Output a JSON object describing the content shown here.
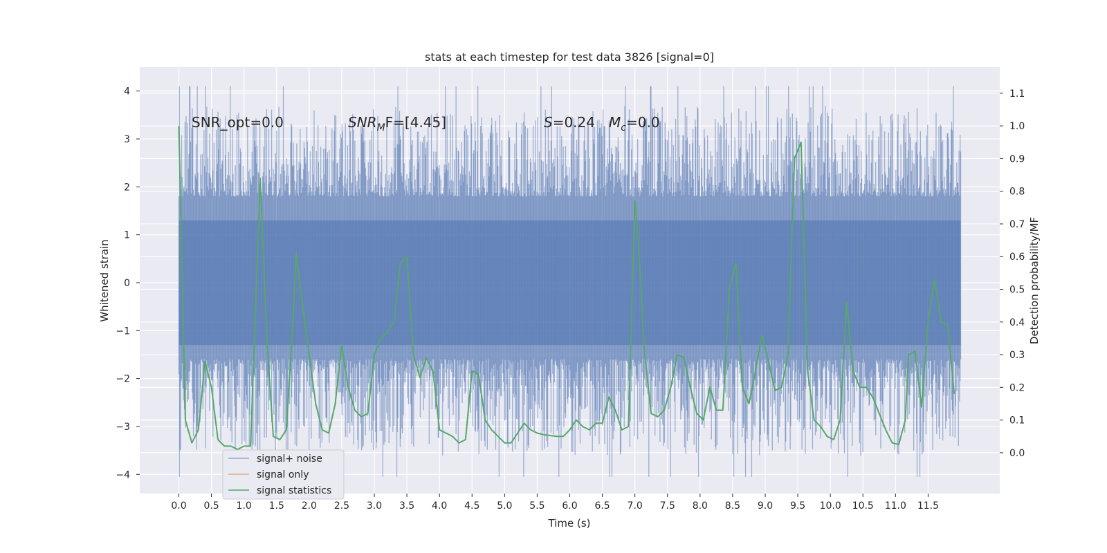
{
  "chart_data": {
    "type": "line",
    "title": "stats at each timestep for test data 3826 [signal=0]",
    "xlabel": "Time (s)",
    "ylabel_left": "Whitened strain",
    "ylabel_right": "Detection probability/MF",
    "xlim": [
      -0.6,
      12.6
    ],
    "ylim_left": [
      -4.4,
      4.5
    ],
    "ylim_right": [
      -0.125,
      1.18
    ],
    "x_ticks": [
      0.0,
      0.5,
      1.0,
      1.5,
      2.0,
      2.5,
      3.0,
      3.5,
      4.0,
      4.5,
      5.0,
      5.5,
      6.0,
      6.5,
      7.0,
      7.5,
      8.0,
      8.5,
      9.0,
      9.5,
      10.0,
      10.5,
      11.0,
      11.5
    ],
    "x_tick_labels": [
      "0.0",
      "0.5",
      "1.0",
      "1.5",
      "2.0",
      "2.5",
      "3.0",
      "3.5",
      "4.0",
      "4.5",
      "5.0",
      "5.5",
      "6.0",
      "6.5",
      "7.0",
      "7.5",
      "8.0",
      "8.5",
      "9.0",
      "9.5",
      "10.0",
      "10.5",
      "11.0",
      "11.5"
    ],
    "y_left_ticks": [
      4,
      3,
      2,
      1,
      0,
      -1,
      -2,
      -3,
      -4
    ],
    "y_left_tick_labels": [
      "4",
      "3",
      "2",
      "1",
      "0",
      "−1",
      "−2",
      "−3",
      "−4"
    ],
    "y_right_ticks": [
      1.1,
      1.0,
      0.9,
      0.8,
      0.7,
      0.6,
      0.5,
      0.4,
      0.3,
      0.2,
      0.1,
      0.0
    ],
    "y_right_tick_labels": [
      "1.1",
      "1.0",
      "0.9",
      "0.8",
      "0.7",
      "0.6",
      "0.5",
      "0.4",
      "0.3",
      "0.2",
      "0.1",
      "0.0"
    ],
    "grid": true,
    "legend_position": "lower-left",
    "annotations": {
      "snr_opt": "SNR_opt=0.0",
      "snr_mf_main": "SNR",
      "snr_mf_sub": "M",
      "snr_mf_rest": "F=[4.45]",
      "s_main": "S",
      "s_rest": "=0.24",
      "mc_main": "M",
      "mc_sub": "c",
      "mc_rest": "=0.0"
    },
    "noise_band": {
      "x_start": 0.0,
      "x_end": 12.0,
      "dense_min": -1.3,
      "dense_max": 1.3,
      "peak_max": 4.1,
      "peak_min": -4.05
    },
    "series": [
      {
        "name": "signal+ noise",
        "color": "#4c72b0",
        "axis": "left",
        "representation": "noise band"
      },
      {
        "name": "signal only",
        "color": "#dd8452",
        "axis": "left",
        "values": []
      },
      {
        "name": "signal statistics",
        "color": "#55a868",
        "axis": "right",
        "x": [
          0.0,
          0.1,
          0.2,
          0.3,
          0.4,
          0.5,
          0.6,
          0.7,
          0.8,
          0.9,
          1.0,
          1.1,
          1.25,
          1.35,
          1.45,
          1.55,
          1.65,
          1.75,
          1.8,
          1.9,
          2.0,
          2.1,
          2.2,
          2.3,
          2.4,
          2.5,
          2.6,
          2.7,
          2.8,
          2.9,
          3.0,
          3.1,
          3.2,
          3.3,
          3.4,
          3.5,
          3.6,
          3.7,
          3.8,
          3.9,
          4.0,
          4.1,
          4.2,
          4.3,
          4.4,
          4.5,
          4.6,
          4.7,
          4.8,
          4.9,
          5.0,
          5.1,
          5.2,
          5.3,
          5.4,
          5.5,
          5.6,
          5.8,
          5.9,
          6.0,
          6.1,
          6.2,
          6.3,
          6.4,
          6.5,
          6.6,
          6.7,
          6.8,
          6.9,
          7.0,
          7.05,
          7.15,
          7.25,
          7.35,
          7.45,
          7.55,
          7.65,
          7.75,
          7.85,
          7.95,
          8.05,
          8.15,
          8.25,
          8.35,
          8.45,
          8.55,
          8.65,
          8.75,
          8.85,
          8.95,
          9.05,
          9.15,
          9.25,
          9.35,
          9.45,
          9.55,
          9.65,
          9.75,
          9.85,
          9.95,
          10.05,
          10.15,
          10.25,
          10.35,
          10.45,
          10.55,
          10.65,
          10.75,
          10.85,
          10.95,
          11.05,
          11.15,
          11.2,
          11.3,
          11.4,
          11.5,
          11.6,
          11.7,
          11.8,
          11.9
        ],
        "values": [
          1.0,
          0.1,
          0.03,
          0.07,
          0.28,
          0.2,
          0.04,
          0.02,
          0.02,
          0.01,
          0.02,
          0.02,
          0.84,
          0.35,
          0.05,
          0.04,
          0.07,
          0.4,
          0.61,
          0.45,
          0.3,
          0.15,
          0.07,
          0.06,
          0.15,
          0.33,
          0.2,
          0.13,
          0.11,
          0.12,
          0.3,
          0.35,
          0.37,
          0.4,
          0.58,
          0.6,
          0.3,
          0.23,
          0.29,
          0.25,
          0.07,
          0.06,
          0.05,
          0.03,
          0.04,
          0.25,
          0.24,
          0.1,
          0.07,
          0.05,
          0.03,
          0.03,
          0.06,
          0.09,
          0.07,
          0.06,
          0.055,
          0.05,
          0.05,
          0.07,
          0.1,
          0.08,
          0.07,
          0.09,
          0.09,
          0.17,
          0.13,
          0.07,
          0.08,
          0.77,
          0.65,
          0.3,
          0.12,
          0.11,
          0.13,
          0.2,
          0.3,
          0.29,
          0.2,
          0.12,
          0.1,
          0.2,
          0.13,
          0.13,
          0.5,
          0.58,
          0.2,
          0.15,
          0.25,
          0.36,
          0.28,
          0.19,
          0.2,
          0.3,
          0.9,
          0.95,
          0.25,
          0.1,
          0.08,
          0.05,
          0.04,
          0.1,
          0.46,
          0.25,
          0.2,
          0.2,
          0.17,
          0.12,
          0.07,
          0.03,
          0.025,
          0.1,
          0.3,
          0.31,
          0.14,
          0.4,
          0.53,
          0.4,
          0.39,
          0.18
        ]
      }
    ]
  }
}
